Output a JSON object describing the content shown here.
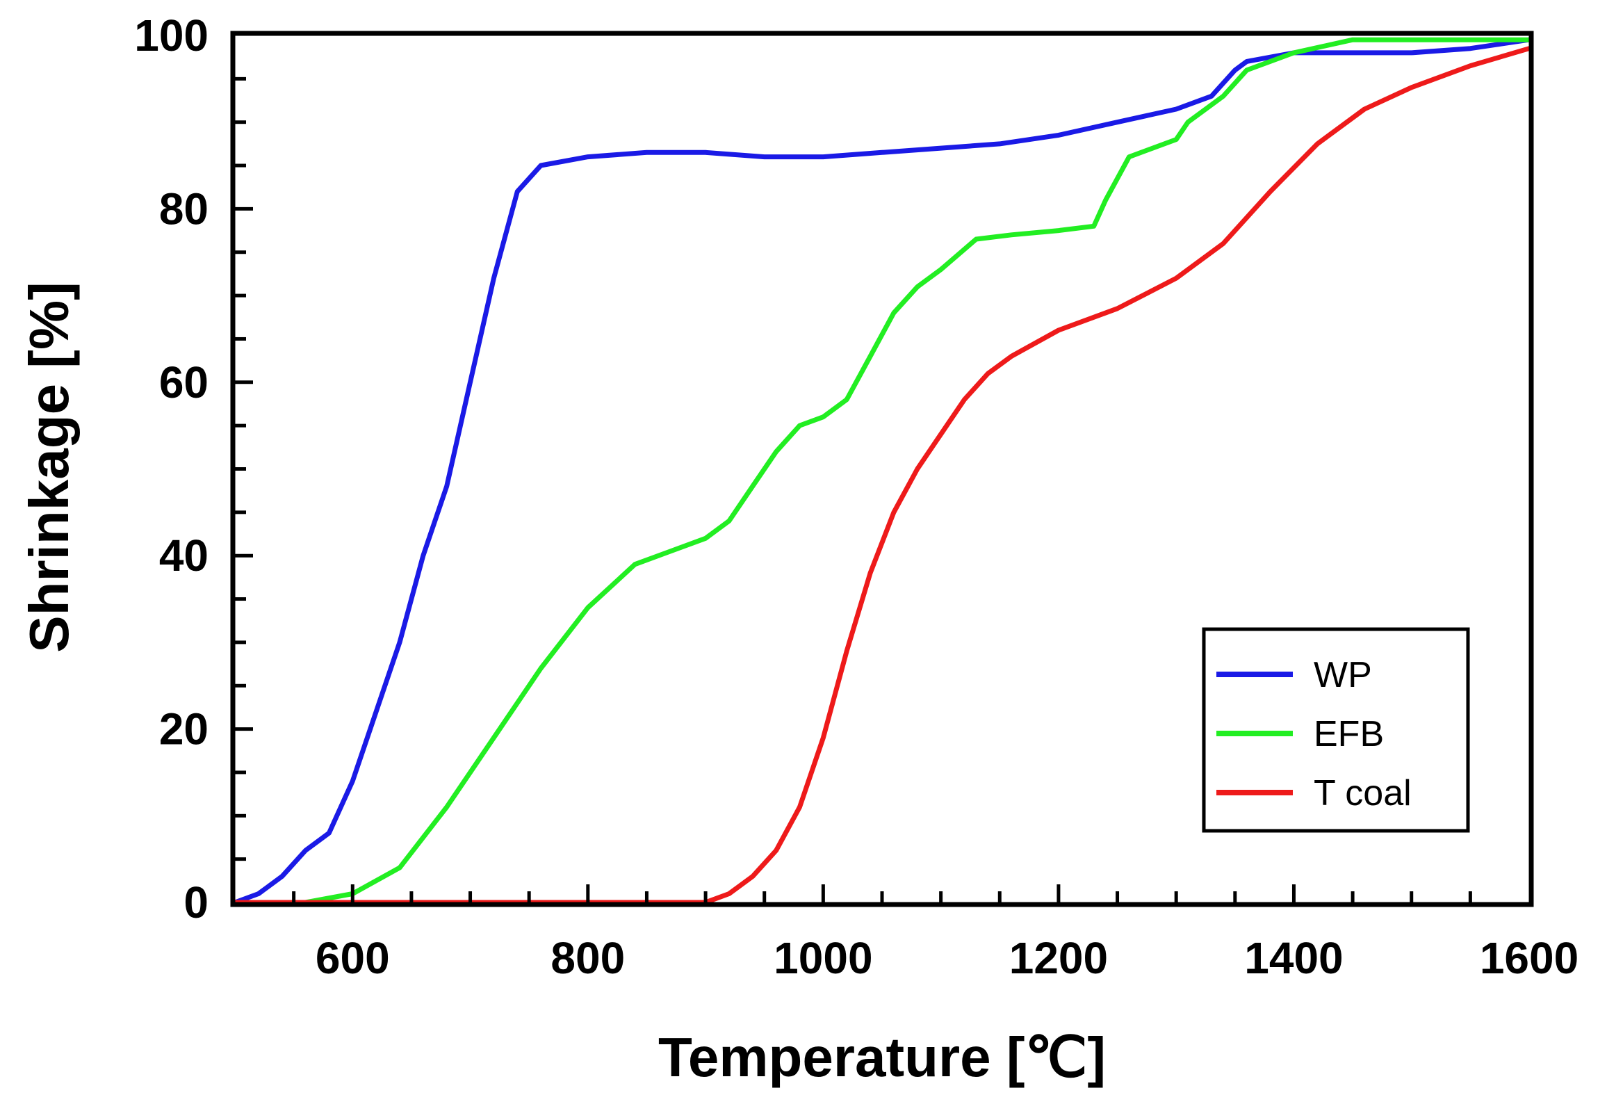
{
  "chart_data": {
    "type": "line",
    "title": "",
    "xlabel": "Temperature [℃]",
    "ylabel": "Shrinkage [%]",
    "xlim": [
      500,
      1600
    ],
    "ylim": [
      0,
      100
    ],
    "x_ticks": [
      600,
      800,
      1000,
      1200,
      1400,
      1600
    ],
    "x_tick_labels": [
      "600",
      "800",
      "1000",
      "1200",
      "1400",
      "1600"
    ],
    "y_ticks": [
      0,
      20,
      40,
      60,
      80,
      100
    ],
    "y_tick_labels": [
      "0",
      "20",
      "40",
      "60",
      "80",
      "100"
    ],
    "grid": false,
    "legend_position": "bottom-right",
    "series": [
      {
        "name": "WP",
        "color": "#1a1ae6",
        "x": [
          500,
          520,
          540,
          560,
          580,
          600,
          620,
          640,
          660,
          680,
          700,
          720,
          740,
          760,
          800,
          850,
          900,
          950,
          1000,
          1050,
          1100,
          1150,
          1200,
          1250,
          1300,
          1330,
          1350,
          1360,
          1400,
          1450,
          1500,
          1550,
          1600
        ],
        "y": [
          0,
          1,
          3,
          6,
          8,
          14,
          22,
          30,
          40,
          48,
          60,
          72,
          82,
          85,
          86,
          86.5,
          86.5,
          86,
          86,
          86.5,
          87,
          87.5,
          88.5,
          90,
          91.5,
          93,
          96,
          97,
          98,
          98,
          98,
          98.5,
          99.5
        ]
      },
      {
        "name": "EFB",
        "color": "#22ee22",
        "x": [
          500,
          560,
          600,
          640,
          680,
          720,
          760,
          800,
          840,
          870,
          900,
          920,
          940,
          960,
          980,
          1000,
          1020,
          1040,
          1060,
          1080,
          1100,
          1130,
          1160,
          1200,
          1230,
          1240,
          1260,
          1280,
          1300,
          1310,
          1340,
          1360,
          1400,
          1450,
          1500,
          1600
        ],
        "y": [
          0,
          0,
          1,
          4,
          11,
          19,
          27,
          34,
          39,
          40.5,
          42,
          44,
          48,
          52,
          55,
          56,
          58,
          63,
          68,
          71,
          73,
          76.5,
          77,
          77.5,
          78,
          81,
          86,
          87,
          88,
          90,
          93,
          96,
          98,
          99.5,
          99.5,
          99.5
        ]
      },
      {
        "name": "T coal",
        "color": "#ee1a1a",
        "x": [
          500,
          600,
          700,
          800,
          900,
          920,
          940,
          960,
          980,
          1000,
          1020,
          1040,
          1060,
          1080,
          1100,
          1120,
          1140,
          1160,
          1200,
          1250,
          1300,
          1340,
          1380,
          1420,
          1460,
          1500,
          1550,
          1600
        ],
        "y": [
          0,
          0,
          0,
          0,
          0,
          1,
          3,
          6,
          11,
          19,
          29,
          38,
          45,
          50,
          54,
          58,
          61,
          63,
          66,
          68.5,
          72,
          76,
          82,
          87.5,
          91.5,
          94,
          96.5,
          98.5
        ]
      }
    ]
  }
}
